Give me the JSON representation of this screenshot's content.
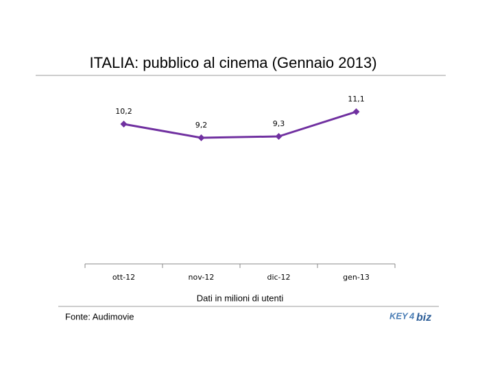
{
  "chart_data": {
    "type": "line",
    "title": "ITALIA: pubblico al cinema (Gennaio 2013)",
    "x_label": "Dati in milioni di utenti",
    "source": "Fonte: Audimovie",
    "logo": [
      "KEY",
      "4",
      "biz"
    ],
    "categories": [
      "ott-12",
      "nov-12",
      "dic-12",
      "gen-13"
    ],
    "values": [
      10.2,
      9.2,
      9.3,
      11.1
    ],
    "value_labels": [
      "10,2",
      "9,2",
      "9,3",
      "11,1"
    ],
    "color": "#7030a0",
    "ylim": [
      0,
      12
    ]
  }
}
